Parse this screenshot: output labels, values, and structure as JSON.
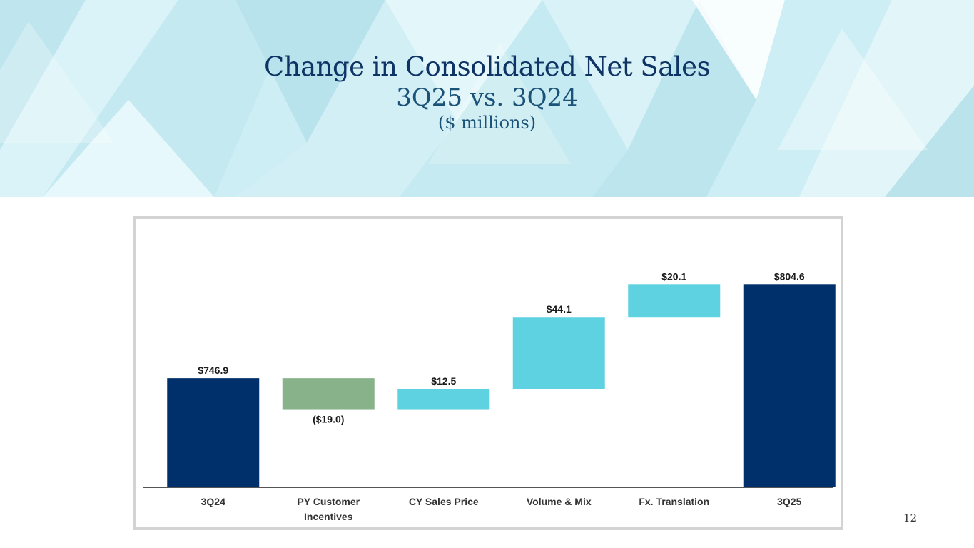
{
  "header": {
    "title_line1": "Change in Consolidated Net Sales",
    "title_line2": "3Q25 vs. 3Q24",
    "title_line3": "($ millions)"
  },
  "page_number": "12",
  "colors": {
    "total": "#00306b",
    "decrease": "#88b38a",
    "increase": "#5fd2e1",
    "title": "#0e3466"
  },
  "chart_data": {
    "type": "waterfall",
    "title": "Change in Consolidated Net Sales 3Q25 vs. 3Q24",
    "unit": "$ millions",
    "categories": [
      "3Q24",
      "PY Customer Incentives",
      "CY Sales Price",
      "Volume & Mix",
      "Fx. Translation",
      "3Q25"
    ],
    "category_lines": [
      [
        "3Q24"
      ],
      [
        "PY Customer",
        "Incentives"
      ],
      [
        "CY Sales Price"
      ],
      [
        "Volume & Mix"
      ],
      [
        "Fx. Translation"
      ],
      [
        "3Q25"
      ]
    ],
    "values": [
      746.9,
      -19.0,
      12.5,
      44.1,
      20.1,
      804.6
    ],
    "kinds": [
      "total",
      "delta",
      "delta",
      "delta",
      "delta",
      "total"
    ],
    "labels": [
      "$746.9",
      "($19.0)",
      "$12.5",
      "$44.1",
      "$20.1",
      "$804.6"
    ],
    "ylim": [
      680,
      820
    ]
  }
}
